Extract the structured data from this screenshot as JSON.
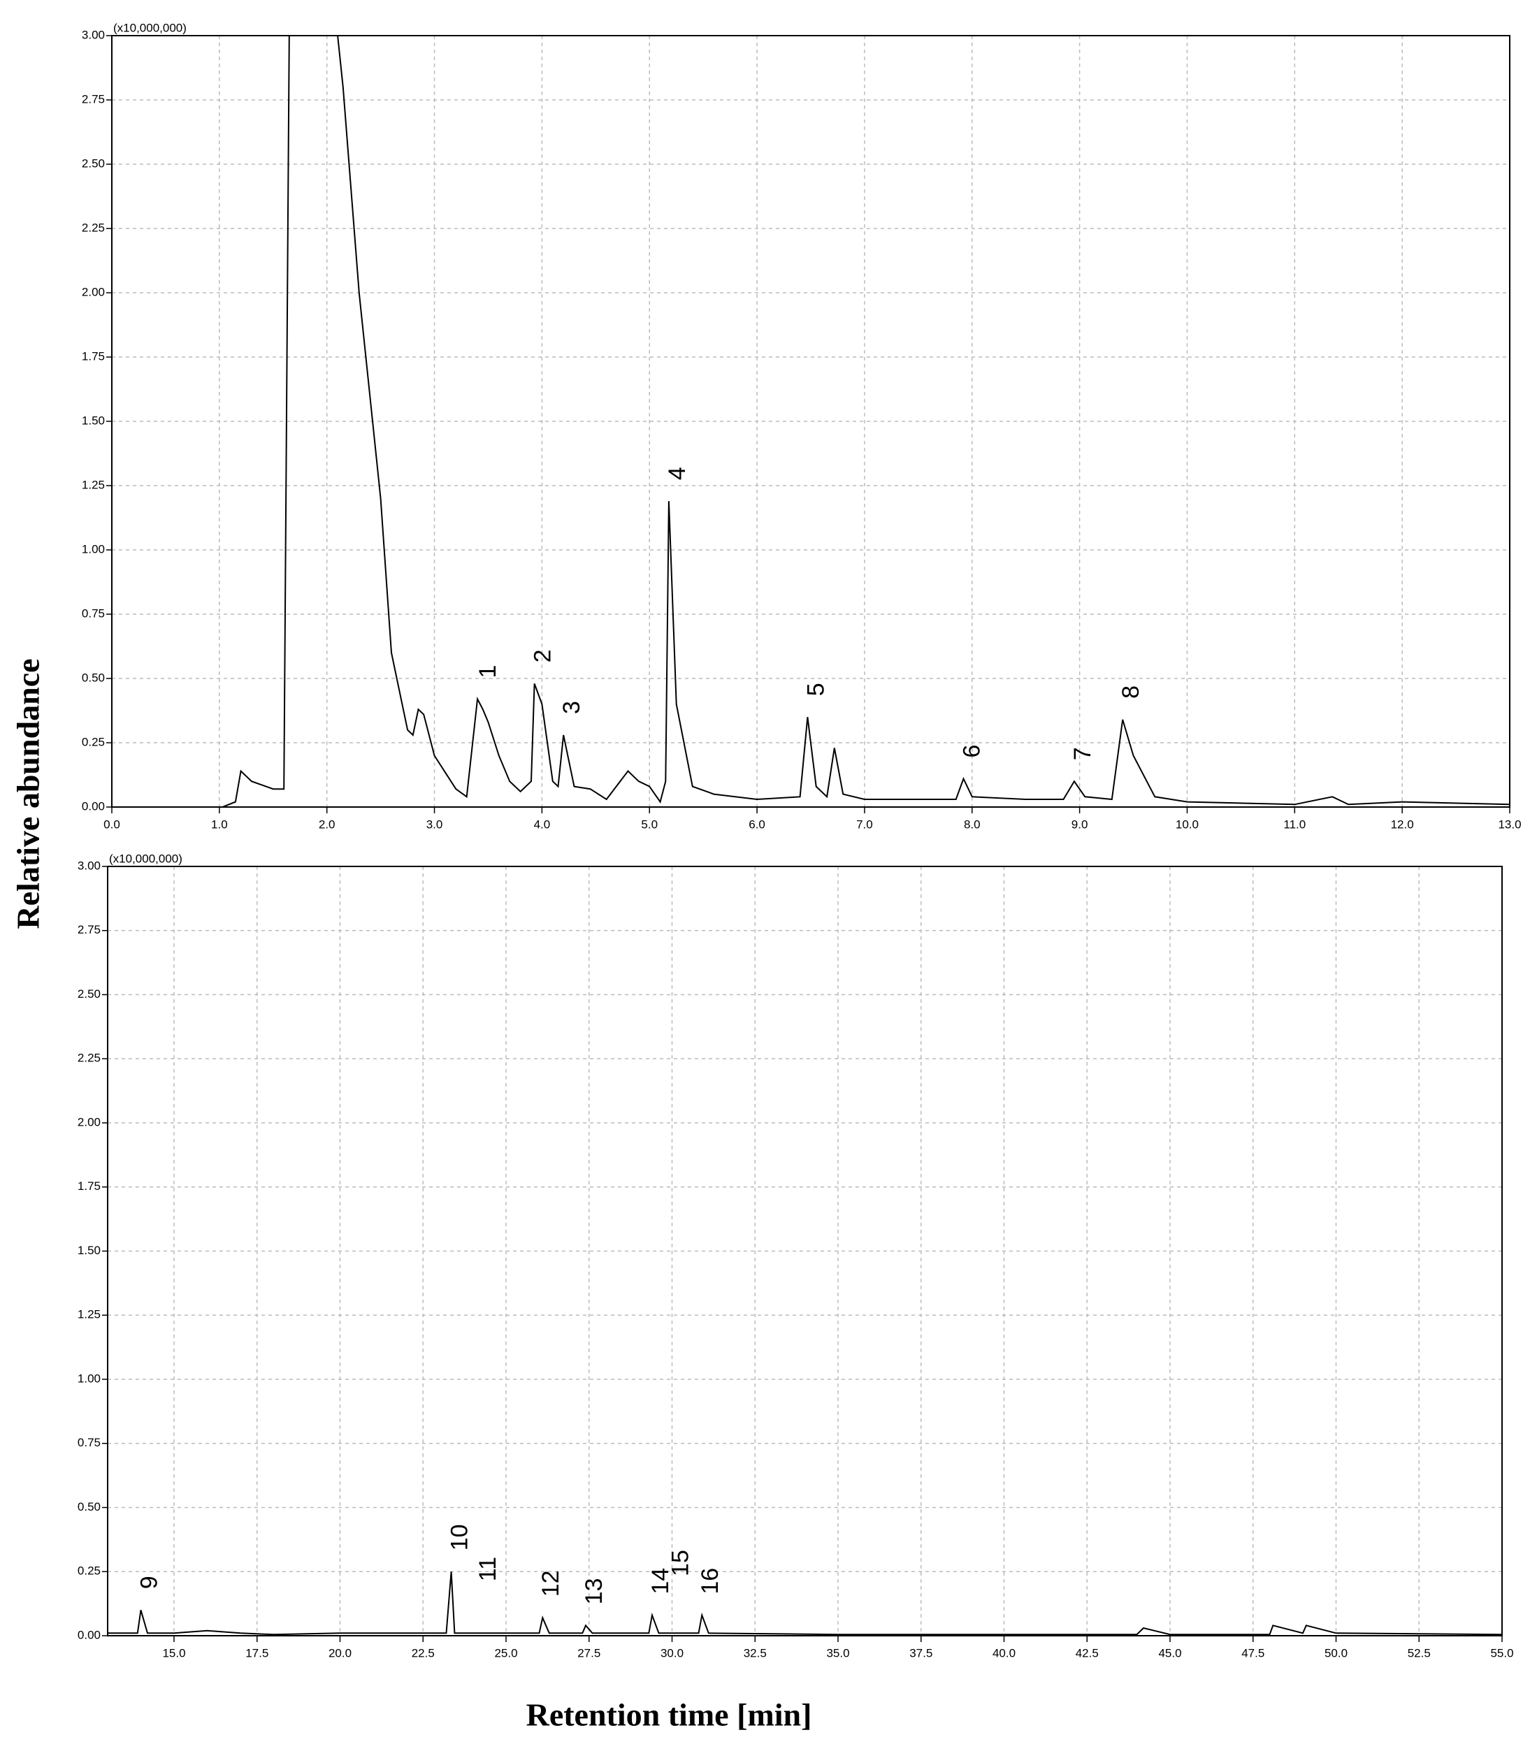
{
  "y_label": "Relative abundance",
  "x_label": "Retention time [min]",
  "chart_data": [
    {
      "type": "line",
      "y_multiplier": "(x10,000,000)",
      "grid": true,
      "xlim": [
        0,
        13
      ],
      "ylim": [
        0,
        3
      ],
      "xticks": [
        {
          "value": 0,
          "label": "0.0"
        },
        {
          "value": 1,
          "label": "1.0"
        },
        {
          "value": 2,
          "label": "2.0"
        },
        {
          "value": 3,
          "label": "3.0"
        },
        {
          "value": 4,
          "label": "4.0"
        },
        {
          "value": 5,
          "label": "5.0"
        },
        {
          "value": 6,
          "label": "6.0"
        },
        {
          "value": 7,
          "label": "7.0"
        },
        {
          "value": 8,
          "label": "8.0"
        },
        {
          "value": 9,
          "label": "9.0"
        },
        {
          "value": 10,
          "label": "10.0"
        },
        {
          "value": 11,
          "label": "11.0"
        },
        {
          "value": 12,
          "label": "12.0"
        },
        {
          "value": 13,
          "label": "13.0"
        }
      ],
      "yticks": [
        {
          "value": 0,
          "label": "0.00"
        },
        {
          "value": 0.25,
          "label": "0.25"
        },
        {
          "value": 0.5,
          "label": "0.50"
        },
        {
          "value": 0.75,
          "label": "0.75"
        },
        {
          "value": 1,
          "label": "1.00"
        },
        {
          "value": 1.25,
          "label": "1.25"
        },
        {
          "value": 1.5,
          "label": "1.50"
        },
        {
          "value": 1.75,
          "label": "1.75"
        },
        {
          "value": 2,
          "label": "2.00"
        },
        {
          "value": 2.25,
          "label": "2.25"
        },
        {
          "value": 2.5,
          "label": "2.50"
        },
        {
          "value": 2.75,
          "label": "2.75"
        },
        {
          "value": 3,
          "label": "3.00"
        }
      ],
      "x": [
        0,
        0.2,
        0.5,
        1.0,
        1.15,
        1.2,
        1.3,
        1.5,
        1.6,
        1.65,
        1.7,
        2.1,
        2.15,
        2.3,
        2.5,
        2.6,
        2.75,
        2.8,
        2.85,
        2.9,
        3.0,
        3.2,
        3.3,
        3.4,
        3.45,
        3.5,
        3.6,
        3.7,
        3.8,
        3.9,
        3.93,
        4.0,
        4.1,
        4.15,
        4.2,
        4.3,
        4.45,
        4.6,
        4.8,
        4.9,
        5.0,
        5.1,
        5.15,
        5.18,
        5.25,
        5.4,
        5.6,
        6.0,
        6.4,
        6.47,
        6.55,
        6.65,
        6.72,
        6.8,
        7.0,
        7.5,
        7.85,
        7.92,
        8.0,
        8.5,
        8.85,
        8.95,
        9.05,
        9.3,
        9.4,
        9.5,
        9.7,
        10.0,
        11.0,
        11.35,
        11.5,
        12.0,
        13.0
      ],
      "series": [
        {
          "color": "#000000",
          "values": [
            0,
            0,
            -0.005,
            -0.005,
            0.02,
            0.14,
            0.1,
            0.07,
            0.07,
            3.0,
            3.0,
            3.0,
            2.8,
            2.0,
            1.2,
            0.6,
            0.3,
            0.28,
            0.38,
            0.36,
            0.2,
            0.07,
            0.04,
            0.42,
            0.38,
            0.33,
            0.2,
            0.1,
            0.06,
            0.1,
            0.48,
            0.4,
            0.1,
            0.08,
            0.28,
            0.08,
            0.07,
            0.03,
            0.14,
            0.1,
            0.08,
            0.02,
            0.1,
            1.19,
            0.4,
            0.08,
            0.05,
            0.03,
            0.04,
            0.35,
            0.08,
            0.04,
            0.23,
            0.05,
            0.03,
            0.03,
            0.03,
            0.11,
            0.04,
            0.03,
            0.03,
            0.1,
            0.04,
            0.03,
            0.34,
            0.2,
            0.04,
            0.02,
            0.01,
            0.04,
            0.01,
            0.02,
            0.01
          ]
        }
      ],
      "annotations": [
        {
          "text": "1",
          "x": 3.42,
          "y": 0.42
        },
        {
          "text": "2",
          "x": 3.93,
          "y": 0.48
        },
        {
          "text": "3",
          "x": 4.2,
          "y": 0.28
        },
        {
          "text": "4",
          "x": 5.18,
          "y": 1.19
        },
        {
          "text": "5",
          "x": 6.47,
          "y": 0.35
        },
        {
          "text": "6",
          "x": 7.92,
          "y": 0.11
        },
        {
          "text": "7",
          "x": 8.95,
          "y": 0.1
        },
        {
          "text": "8",
          "x": 9.4,
          "y": 0.34
        }
      ]
    },
    {
      "type": "line",
      "y_multiplier": "(x10,000,000)",
      "grid": true,
      "xlim": [
        13,
        55
      ],
      "ylim": [
        0,
        3
      ],
      "xticks": [
        {
          "value": 15,
          "label": "15.0"
        },
        {
          "value": 17.5,
          "label": "17.5"
        },
        {
          "value": 20,
          "label": "20.0"
        },
        {
          "value": 22.5,
          "label": "22.5"
        },
        {
          "value": 25,
          "label": "25.0"
        },
        {
          "value": 27.5,
          "label": "27.5"
        },
        {
          "value": 30,
          "label": "30.0"
        },
        {
          "value": 32.5,
          "label": "32.5"
        },
        {
          "value": 35,
          "label": "35.0"
        },
        {
          "value": 37.5,
          "label": "37.5"
        },
        {
          "value": 40,
          "label": "40.0"
        },
        {
          "value": 42.5,
          "label": "42.5"
        },
        {
          "value": 45,
          "label": "45.0"
        },
        {
          "value": 47.5,
          "label": "47.5"
        },
        {
          "value": 50,
          "label": "50.0"
        },
        {
          "value": 52.5,
          "label": "52.5"
        },
        {
          "value": 55,
          "label": "55.0"
        }
      ],
      "yticks": [
        {
          "value": 0,
          "label": "0.00"
        },
        {
          "value": 0.25,
          "label": "0.25"
        },
        {
          "value": 0.5,
          "label": "0.50"
        },
        {
          "value": 0.75,
          "label": "0.75"
        },
        {
          "value": 1,
          "label": "1.00"
        },
        {
          "value": 1.25,
          "label": "1.25"
        },
        {
          "value": 1.5,
          "label": "1.50"
        },
        {
          "value": 1.75,
          "label": "1.75"
        },
        {
          "value": 2,
          "label": "2.00"
        },
        {
          "value": 2.25,
          "label": "2.25"
        },
        {
          "value": 2.5,
          "label": "2.50"
        },
        {
          "value": 2.75,
          "label": "2.75"
        },
        {
          "value": 3,
          "label": "3.00"
        }
      ],
      "x": [
        13,
        13.5,
        13.9,
        14.0,
        14.2,
        15,
        16,
        17,
        18,
        20,
        22,
        23.2,
        23.35,
        23.45,
        24,
        26,
        26.1,
        26.3,
        27.3,
        27.4,
        27.6,
        29.3,
        29.4,
        29.6,
        30.8,
        30.9,
        31.1,
        35,
        40,
        44,
        44.2,
        45,
        48,
        48.1,
        49,
        49.1,
        50,
        55
      ],
      "series": [
        {
          "color": "#000000",
          "values": [
            0.01,
            0.01,
            0.01,
            0.1,
            0.01,
            0.01,
            0.02,
            0.01,
            0.005,
            0.01,
            0.01,
            0.01,
            0.25,
            0.01,
            0.01,
            0.01,
            0.07,
            0.01,
            0.01,
            0.04,
            0.01,
            0.01,
            0.08,
            0.01,
            0.01,
            0.08,
            0.01,
            0.005,
            0.005,
            0.005,
            0.03,
            0.005,
            0.005,
            0.04,
            0.01,
            0.04,
            0.01,
            0.005
          ]
        }
      ],
      "annotations": [
        {
          "text": "9",
          "x": 14.0,
          "y": 0.1
        },
        {
          "text": "10",
          "x": 23.35,
          "y": 0.25
        },
        {
          "text": "11",
          "x": 24.2,
          "y": 0.13
        },
        {
          "text": "12",
          "x": 26.1,
          "y": 0.07
        },
        {
          "text": "13",
          "x": 27.4,
          "y": 0.04
        },
        {
          "text": "14",
          "x": 29.4,
          "y": 0.08
        },
        {
          "text": "15",
          "x": 30.0,
          "y": 0.15
        },
        {
          "text": "16",
          "x": 30.9,
          "y": 0.08
        }
      ]
    }
  ]
}
